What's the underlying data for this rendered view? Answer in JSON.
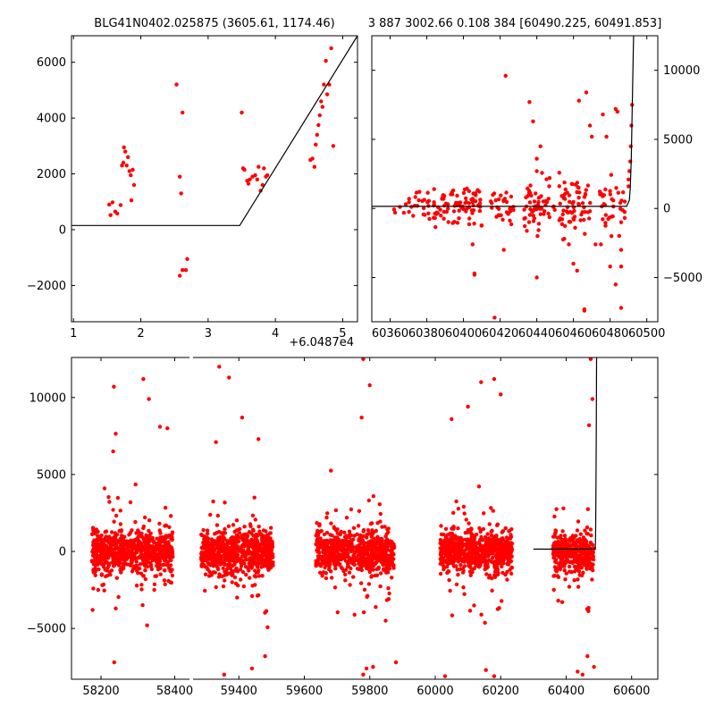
{
  "chart_data": [
    {
      "id": "zoom-left",
      "type": "scatter",
      "title": "BLG41N0402.025875 (3605.61, 1174.46)",
      "x_offset_label": "+6.0487e4",
      "xlim": [
        0.97,
        5.22
      ],
      "ylim": [
        -3300,
        6950
      ],
      "xticks": [
        "1",
        "2",
        "3",
        "4",
        "5"
      ],
      "yticks": [
        "−2000",
        "0",
        "2000",
        "4000",
        "6000"
      ],
      "marker_color": "#ff0000",
      "model": {
        "x": [
          0.97,
          3.43,
          3.47,
          5.22
        ],
        "y": [
          150,
          150,
          150,
          6950
        ]
      },
      "points": [
        [
          1.53,
          900
        ],
        [
          1.55,
          520
        ],
        [
          1.58,
          980
        ],
        [
          1.62,
          650
        ],
        [
          1.65,
          580
        ],
        [
          1.7,
          880
        ],
        [
          1.72,
          2300
        ],
        [
          1.74,
          2400
        ],
        [
          1.75,
          2950
        ],
        [
          1.77,
          2800
        ],
        [
          1.79,
          2300
        ],
        [
          1.81,
          2600
        ],
        [
          1.83,
          2100
        ],
        [
          1.85,
          1950
        ],
        [
          1.88,
          2150
        ],
        [
          1.9,
          1600
        ],
        [
          1.86,
          1050
        ],
        [
          2.53,
          5200
        ],
        [
          2.58,
          1900
        ],
        [
          2.6,
          1300
        ],
        [
          2.62,
          4200
        ],
        [
          2.58,
          -1650
        ],
        [
          2.62,
          -1450
        ],
        [
          2.67,
          -1450
        ],
        [
          2.69,
          -1050
        ],
        [
          3.5,
          4200
        ],
        [
          3.52,
          2200
        ],
        [
          3.54,
          2150
        ],
        [
          3.58,
          1750
        ],
        [
          3.6,
          1650
        ],
        [
          3.62,
          1800
        ],
        [
          3.66,
          1900
        ],
        [
          3.7,
          1950
        ],
        [
          3.73,
          1800
        ],
        [
          3.75,
          2250
        ],
        [
          3.78,
          1400
        ],
        [
          3.81,
          1600
        ],
        [
          3.83,
          2200
        ],
        [
          3.86,
          1900
        ],
        [
          3.88,
          1950
        ],
        [
          4.52,
          2500
        ],
        [
          4.55,
          2550
        ],
        [
          4.58,
          2250
        ],
        [
          4.6,
          3050
        ],
        [
          4.62,
          3400
        ],
        [
          4.64,
          3750
        ],
        [
          4.66,
          4100
        ],
        [
          4.68,
          4600
        ],
        [
          4.7,
          4400
        ],
        [
          4.72,
          5200
        ],
        [
          4.75,
          6050
        ],
        [
          4.77,
          4850
        ],
        [
          4.8,
          5200
        ],
        [
          4.83,
          6500
        ],
        [
          4.86,
          3000
        ]
      ]
    },
    {
      "id": "zoom-right",
      "type": "scatter",
      "title": "3 887 3002.66 0.108 384 [60490.225, 60491.853]",
      "xlim": [
        60350,
        60506
      ],
      "ylim": [
        -8200,
        12500
      ],
      "xticks": [
        "60360",
        "60380",
        "60400",
        "60420",
        "60440",
        "60460",
        "60480",
        "60500"
      ],
      "yticks": [
        "−5000",
        "0",
        "5000",
        "10000"
      ],
      "marker_color": "#ff0000",
      "model": {
        "x": [
          60350,
          60489,
          60490.5,
          60491,
          60491.5,
          60492,
          60492.8
        ],
        "y": [
          150,
          150,
          600,
          1500,
          3500,
          7000,
          12500
        ]
      },
      "clusters": [
        [
          60362,
          60374,
          260,
          -1600,
          1600,
          12
        ],
        [
          60374,
          60392,
          10,
          -1900,
          2000,
          40
        ],
        [
          60393,
          60410,
          200,
          -2600,
          2400,
          55
        ],
        [
          60414,
          60428,
          150,
          -1700,
          2600,
          30
        ],
        [
          60433,
          60450,
          120,
          -2400,
          3500,
          60
        ],
        [
          60452,
          60470,
          100,
          -2600,
          4000,
          65
        ],
        [
          60474,
          60488,
          180,
          -2000,
          3600,
          35
        ]
      ],
      "outliers": [
        [
          60376,
          1200
        ],
        [
          60384,
          1400
        ],
        [
          60405,
          -2600
        ],
        [
          60406,
          -4700
        ],
        [
          60406,
          -4800
        ],
        [
          60417,
          -7900
        ],
        [
          60422,
          -3000
        ],
        [
          60423,
          9600
        ],
        [
          60436,
          7700
        ],
        [
          60438,
          6300
        ],
        [
          60440,
          3600
        ],
        [
          60440,
          2700
        ],
        [
          60442,
          4500
        ],
        [
          60440,
          -5000
        ],
        [
          60447,
          2200
        ],
        [
          60455,
          -2200
        ],
        [
          60460,
          -4000
        ],
        [
          60462,
          -4500
        ],
        [
          60466,
          -7300
        ],
        [
          60466,
          -7400
        ],
        [
          60463,
          7800
        ],
        [
          60467,
          8400
        ],
        [
          60469,
          6000
        ],
        [
          60470,
          5200
        ],
        [
          60472,
          -2600
        ],
        [
          60475,
          -2600
        ],
        [
          60476,
          6800
        ],
        [
          60478,
          5200
        ],
        [
          60480,
          -4200
        ],
        [
          60483,
          -5500
        ],
        [
          60483,
          7200
        ],
        [
          60486,
          -3000
        ],
        [
          60486,
          -4200
        ],
        [
          60484,
          7000
        ],
        [
          60486,
          -7200
        ],
        [
          60488,
          500
        ],
        [
          60490,
          1600
        ],
        [
          60490,
          2100
        ],
        [
          60490.5,
          2700
        ],
        [
          60491,
          3400
        ],
        [
          60491.3,
          4500
        ],
        [
          60491.6,
          6000
        ],
        [
          60492,
          7500
        ],
        [
          60486,
          -1000
        ]
      ],
      "cluster_columns": [
        "x_start",
        "x_end",
        "center",
        "low",
        "high",
        "count"
      ]
    },
    {
      "id": "full-light-curve",
      "type": "scatter",
      "broken_x_axis": true,
      "segments": [
        {
          "xlim": [
            58120,
            58440
          ],
          "xticks": [
            "58200",
            "58400"
          ]
        },
        {
          "xlim": [
            59260,
            60680
          ],
          "xticks": [
            "59400",
            "59600",
            "59800",
            "60000",
            "60200",
            "60400",
            "60600"
          ]
        }
      ],
      "ylim": [
        -8300,
        12600
      ],
      "yticks": [
        "−5000",
        "0",
        "5000",
        "10000"
      ],
      "marker_color": "#ff0000",
      "model": {
        "x": [
          60300,
          60489,
          60490.3,
          60491,
          60492,
          60493
        ],
        "y": [
          150,
          150,
          1500,
          4000,
          8000,
          12600
        ]
      },
      "seasons": [
        [
          58175,
          58395,
          0,
          750
        ],
        [
          59285,
          59505,
          0,
          750
        ],
        [
          59635,
          59755,
          0,
          330
        ],
        [
          59760,
          59875,
          -100,
          390
        ],
        [
          60015,
          60235,
          0,
          720
        ],
        [
          60360,
          60485,
          -100,
          380
        ]
      ],
      "season_columns": [
        "x_start",
        "x_end",
        "center",
        "count"
      ],
      "outliers": [
        [
          58235,
          10700
        ],
        [
          58240,
          7650
        ],
        [
          58233,
          6500
        ],
        [
          58315,
          11200
        ],
        [
          58330,
          9900
        ],
        [
          58360,
          8100
        ],
        [
          58380,
          8000
        ],
        [
          58236,
          -7200
        ],
        [
          58325,
          -4800
        ],
        [
          58240,
          -3700
        ],
        [
          59340,
          12000
        ],
        [
          59370,
          11300
        ],
        [
          59410,
          8700
        ],
        [
          59355,
          -8000
        ],
        [
          59440,
          -7600
        ],
        [
          59460,
          7300
        ],
        [
          59480,
          -6800
        ],
        [
          59330,
          7100
        ],
        [
          59780,
          12500
        ],
        [
          59800,
          10800
        ],
        [
          59775,
          8700
        ],
        [
          59790,
          -7600
        ],
        [
          59810,
          -7500
        ],
        [
          59780,
          -8000
        ],
        [
          59880,
          -7200
        ],
        [
          60030,
          -8100
        ],
        [
          60140,
          11000
        ],
        [
          60180,
          11200
        ],
        [
          60200,
          10200
        ],
        [
          60100,
          9400
        ],
        [
          60050,
          8600
        ],
        [
          60155,
          -7700
        ],
        [
          60180,
          -8100
        ],
        [
          60475,
          12500
        ],
        [
          60480,
          9900
        ],
        [
          60435,
          -7800
        ],
        [
          60450,
          -8000
        ],
        [
          60485,
          -7500
        ],
        [
          60470,
          8200
        ],
        [
          60465,
          -6800
        ]
      ]
    }
  ]
}
